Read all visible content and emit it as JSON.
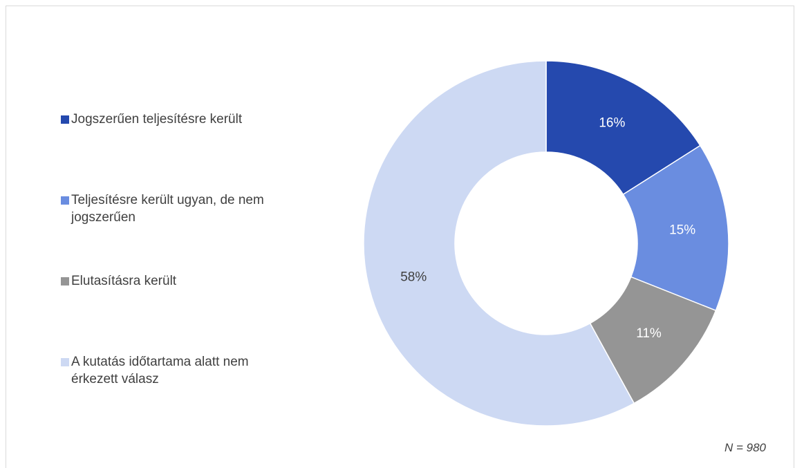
{
  "chart_data": {
    "type": "donut",
    "categories": [
      "Jogszerűen teljesítésre került",
      "Teljesítésre került ugyan, de nem jogszerűen",
      "Elutasításra került",
      "A kutatás időtartama alatt nem érkezett válasz"
    ],
    "values": [
      16,
      15,
      11,
      58
    ],
    "value_labels": [
      "16%",
      "15%",
      "11%",
      "58%"
    ],
    "colors": [
      "#2549ae",
      "#6a8de0",
      "#959595",
      "#cdd9f3"
    ],
    "legend": "left",
    "note": "N = 980"
  }
}
